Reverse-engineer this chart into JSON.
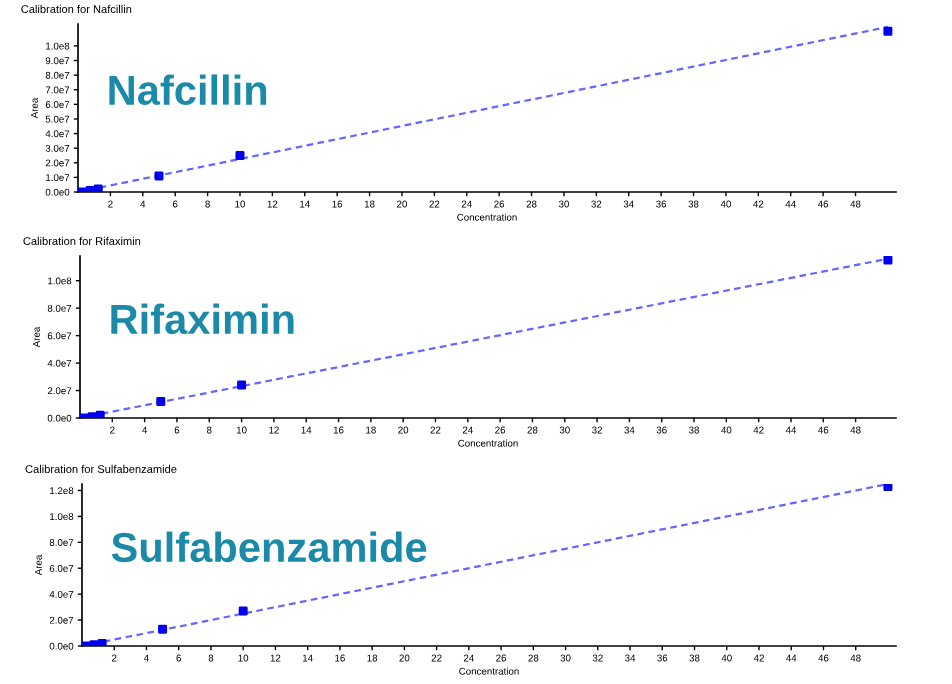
{
  "chart_data": [
    {
      "type": "scatter",
      "title": "Calibration for Nafcillin",
      "xlabel": "Concentration",
      "ylabel": "Area",
      "annotations": [
        "Nafcillin"
      ],
      "marker": "square",
      "grid": false,
      "legend": false,
      "xlim": [
        0,
        50.5
      ],
      "xticks": [
        2,
        4,
        6,
        8,
        10,
        12,
        14,
        16,
        18,
        20,
        22,
        24,
        26,
        28,
        30,
        32,
        34,
        36,
        38,
        40,
        42,
        44,
        46,
        48
      ],
      "ylim": [
        0,
        115000000
      ],
      "yticks": [
        {
          "value": 0,
          "label": "0.0e0"
        },
        {
          "value": 10000000,
          "label": "1.0e7"
        },
        {
          "value": 20000000,
          "label": "2.0e7"
        },
        {
          "value": 30000000,
          "label": "3.0e7"
        },
        {
          "value": 40000000,
          "label": "4.0e7"
        },
        {
          "value": 50000000,
          "label": "5.0e7"
        },
        {
          "value": 60000000,
          "label": "6.0e7"
        },
        {
          "value": 70000000,
          "label": "7.0e7"
        },
        {
          "value": 80000000,
          "label": "8.0e7"
        },
        {
          "value": 90000000,
          "label": "9.0e7"
        },
        {
          "value": 100000000,
          "label": "1.0e8"
        }
      ],
      "series": [
        {
          "color": "#0000ee",
          "x": [
            0.25,
            0.75,
            1.25,
            5,
            10,
            50
          ],
          "values": [
            0,
            1000000,
            2000000,
            11000000,
            25000000,
            110000000
          ]
        },
        {
          "type": "line",
          "color": "#6666ff",
          "line_style": "dashed",
          "marker": "none",
          "x": [
            0,
            50
          ],
          "values": [
            0,
            113000000
          ]
        }
      ]
    },
    {
      "type": "scatter",
      "title": "Calibration for Rifaximin",
      "xlabel": "Concentration",
      "ylabel": "Area",
      "annotations": [
        "Rifaximin"
      ],
      "marker": "square",
      "grid": false,
      "legend": false,
      "xlim": [
        0,
        50.5
      ],
      "xticks": [
        2,
        4,
        6,
        8,
        10,
        12,
        14,
        16,
        18,
        20,
        22,
        24,
        26,
        28,
        30,
        32,
        34,
        36,
        38,
        40,
        42,
        44,
        46,
        48
      ],
      "ylim": [
        0,
        118000000
      ],
      "yticks": [
        {
          "value": 0,
          "label": "0.0e0"
        },
        {
          "value": 20000000,
          "label": "2.0e7"
        },
        {
          "value": 40000000,
          "label": "4.0e7"
        },
        {
          "value": 60000000,
          "label": "6.0e7"
        },
        {
          "value": 80000000,
          "label": "8.0e7"
        },
        {
          "value": 100000000,
          "label": "1.0e8"
        }
      ],
      "series": [
        {
          "color": "#0000ee",
          "x": [
            0.25,
            0.75,
            1.25,
            5,
            10,
            50
          ],
          "values": [
            0,
            1000000,
            2000000,
            12000000,
            24000000,
            115000000
          ]
        },
        {
          "type": "line",
          "color": "#6666ff",
          "line_style": "dashed",
          "marker": "none",
          "x": [
            0,
            50
          ],
          "values": [
            0,
            116000000
          ]
        }
      ]
    },
    {
      "type": "scatter",
      "title": "Calibration for Sulfabenzamide",
      "xlabel": "Concentration",
      "ylabel": "Area",
      "annotations": [
        "Sulfabenzamide"
      ],
      "marker": "square",
      "grid": false,
      "legend": false,
      "xlim": [
        0,
        50.5
      ],
      "xticks": [
        2,
        4,
        6,
        8,
        10,
        12,
        14,
        16,
        18,
        20,
        22,
        24,
        26,
        28,
        30,
        32,
        34,
        36,
        38,
        40,
        42,
        44,
        46,
        48
      ],
      "ylim": [
        0,
        125000000
      ],
      "yticks": [
        {
          "value": 0,
          "label": "0.0e0"
        },
        {
          "value": 20000000,
          "label": "2.0e7"
        },
        {
          "value": 40000000,
          "label": "4.0e7"
        },
        {
          "value": 60000000,
          "label": "6.0e7"
        },
        {
          "value": 80000000,
          "label": "8.0e7"
        },
        {
          "value": 100000000,
          "label": "1.0e8"
        },
        {
          "value": 120000000,
          "label": "1.2e8"
        }
      ],
      "series": [
        {
          "color": "#0000ee",
          "x": [
            0.25,
            0.75,
            1.25,
            5,
            10,
            50
          ],
          "values": [
            0,
            1000000,
            2000000,
            13000000,
            27000000,
            123000000
          ]
        },
        {
          "type": "line",
          "color": "#6666ff",
          "line_style": "dashed",
          "marker": "none",
          "x": [
            0,
            50
          ],
          "values": [
            0,
            125000000
          ]
        }
      ]
    }
  ]
}
